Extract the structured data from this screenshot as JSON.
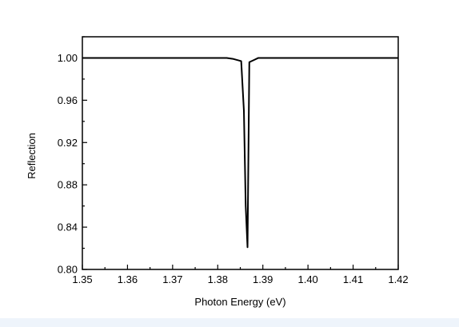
{
  "chart_data": {
    "type": "line",
    "title": "",
    "xlabel": "Photon Energy (eV)",
    "ylabel": "Reflection",
    "xlim": [
      1.35,
      1.42
    ],
    "ylim": [
      0.8,
      1.02
    ],
    "xticks": [
      1.35,
      1.36,
      1.37,
      1.38,
      1.39,
      1.4,
      1.41,
      1.42
    ],
    "xtick_labels": [
      "1.35",
      "1.36",
      "1.37",
      "1.38",
      "1.39",
      "1.40",
      "1.41",
      "1.42"
    ],
    "yticks": [
      0.8,
      0.84,
      0.88,
      0.92,
      0.96,
      1.0
    ],
    "ytick_labels": [
      "0.80",
      "0.84",
      "0.88",
      "0.92",
      "0.96",
      "1.00"
    ],
    "grid": false,
    "legend": "none",
    "series": [
      {
        "color": "#000000",
        "x": [
          1.35,
          1.382,
          1.3835,
          1.3852,
          1.3858,
          1.3862,
          1.3866,
          1.387,
          1.388,
          1.389,
          1.395,
          1.42
        ],
        "y": [
          1.0,
          1.0,
          0.999,
          0.997,
          0.95,
          0.86,
          0.821,
          0.996,
          0.998,
          1.0,
          1.0,
          1.0
        ]
      }
    ]
  }
}
